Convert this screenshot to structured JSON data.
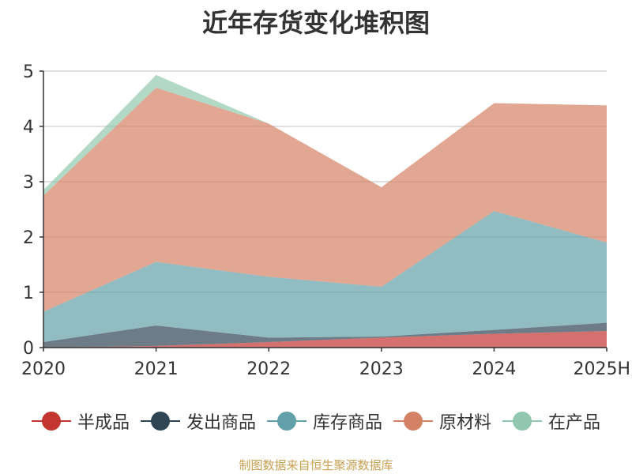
{
  "chart_data": {
    "type": "area",
    "stacked": true,
    "title": "近年存货变化堆积图",
    "ylabel": "",
    "xlabel": "",
    "categories": [
      "2020",
      "2021",
      "2022",
      "2023",
      "2024",
      "2025H"
    ],
    "ylim": [
      0,
      5
    ],
    "yticks": [
      0,
      1,
      2,
      3,
      4,
      5
    ],
    "grid": true,
    "legend_position": "bottom",
    "series": [
      {
        "name": "半成品",
        "color": "#c23531",
        "values": [
          0.0,
          0.03,
          0.1,
          0.18,
          0.25,
          0.3
        ]
      },
      {
        "name": "发出商品",
        "color": "#2f4554",
        "values": [
          0.1,
          0.37,
          0.08,
          0.02,
          0.07,
          0.15
        ]
      },
      {
        "name": "库存商品",
        "color": "#61a0a8",
        "values": [
          0.55,
          1.15,
          1.1,
          0.9,
          2.15,
          1.45
        ]
      },
      {
        "name": "原材料",
        "color": "#d48265",
        "values": [
          2.1,
          3.15,
          2.77,
          1.8,
          1.95,
          2.48
        ]
      },
      {
        "name": "在产品",
        "color": "#91c7ae",
        "values": [
          0.1,
          0.23,
          0.0,
          0.0,
          0.0,
          0.0
        ]
      }
    ]
  },
  "footer": "制图数据来自恒生聚源数据库"
}
